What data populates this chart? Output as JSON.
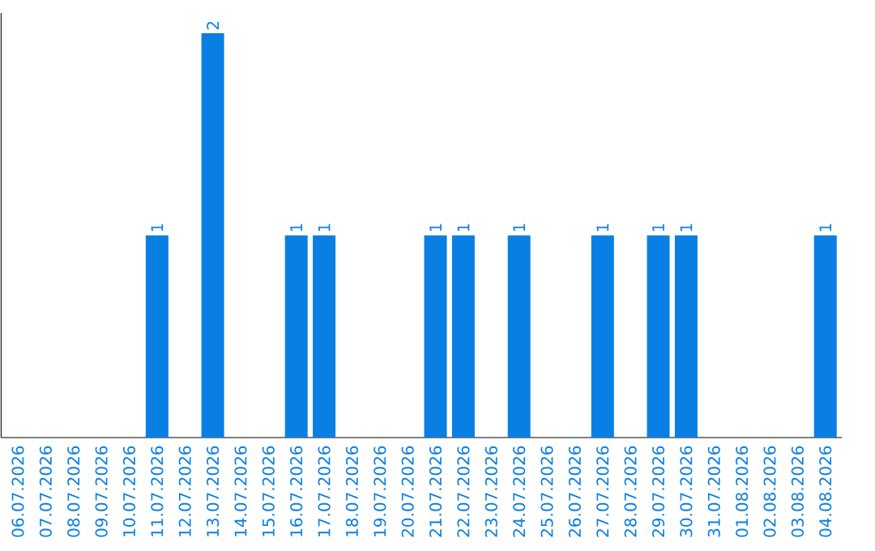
{
  "chart_data": {
    "type": "bar",
    "categories": [
      "06.07.2026",
      "07.07.2026",
      "08.07.2026",
      "09.07.2026",
      "10.07.2026",
      "11.07.2026",
      "12.07.2026",
      "13.07.2026",
      "14.07.2026",
      "15.07.2026",
      "16.07.2026",
      "17.07.2026",
      "18.07.2026",
      "19.07.2026",
      "20.07.2026",
      "21.07.2026",
      "22.07.2026",
      "23.07.2026",
      "24.07.2026",
      "25.07.2026",
      "26.07.2026",
      "27.07.2026",
      "28.07.2026",
      "29.07.2026",
      "30.07.2026",
      "31.07.2026",
      "01.08.2026",
      "02.08.2026",
      "03.08.2026",
      "04.08.2026"
    ],
    "values": [
      0,
      0,
      0,
      0,
      0,
      1,
      0,
      2,
      0,
      0,
      1,
      1,
      0,
      0,
      0,
      1,
      1,
      0,
      1,
      0,
      0,
      1,
      0,
      1,
      1,
      0,
      0,
      0,
      0,
      1
    ],
    "value_labels": [
      null,
      null,
      null,
      null,
      null,
      "1",
      null,
      "2",
      null,
      null,
      "1",
      "1",
      null,
      null,
      null,
      "1",
      "1",
      null,
      "1",
      null,
      null,
      "1",
      null,
      "1",
      "1",
      null,
      null,
      null,
      null,
      "1"
    ],
    "color": "#0a7fe3",
    "ylim": [
      0,
      2.1
    ],
    "tick_labels": "x",
    "grid": false
  }
}
